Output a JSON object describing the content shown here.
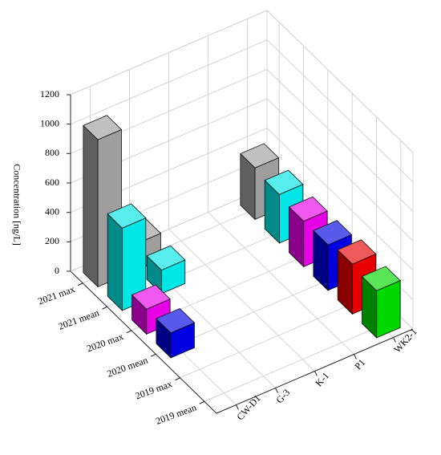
{
  "chart_data": {
    "type": "bar3d",
    "zlabel": "Concentration [ng/L]",
    "rows": [
      "2021 max",
      "2021 mean",
      "2020 max",
      "2020 mean",
      "2019 max",
      "2019 mean"
    ],
    "columns": [
      "CW-D1",
      "G-3",
      "K-1",
      "P1",
      "WK2-1"
    ],
    "colors": [
      "#9e9e9e",
      "#00e5e5",
      "#e600e6",
      "#0000e0",
      "#e60000",
      "#00d900"
    ],
    "values": [
      [
        1000,
        180,
        null,
        null,
        350
      ],
      [
        560,
        160,
        null,
        null,
        330
      ],
      [
        170,
        null,
        null,
        null,
        310
      ],
      [
        170,
        null,
        null,
        null,
        310
      ],
      [
        null,
        null,
        null,
        null,
        340
      ],
      [
        null,
        null,
        null,
        null,
        320
      ]
    ],
    "zlim": [
      0,
      1200
    ],
    "zticks": [
      0,
      200,
      400,
      600,
      800,
      1000,
      1200
    ],
    "grid": true
  }
}
